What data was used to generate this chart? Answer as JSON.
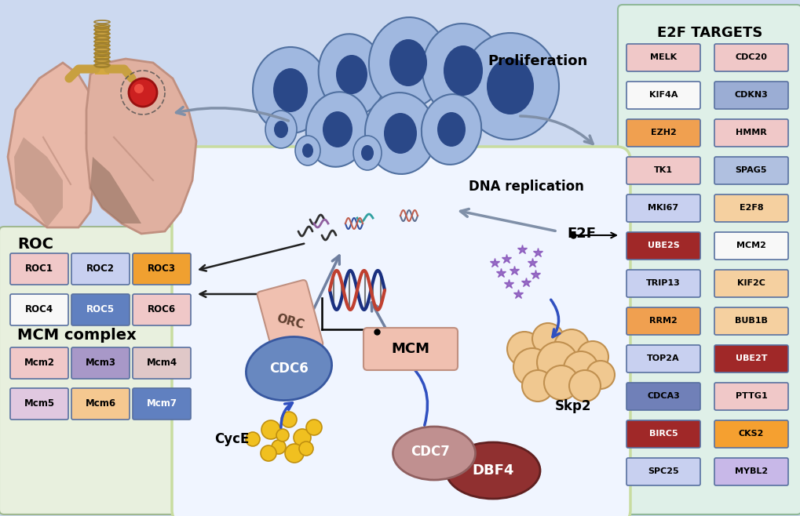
{
  "bg_color": "#ccd9f0",
  "left_panel_bg": "#e8f0de",
  "right_panel_bg": "#dff0e8",
  "cell_bg": "#f0f5ff",
  "cell_edge": "#c8dca0",
  "title": "E2F TARGETS",
  "roc_title": "ROC",
  "mcm_title": "MCM complex",
  "proliferation_text": "Proliferation",
  "dna_replication_text": "DNA replication",
  "e2f_label": "E2F",
  "skp2_label": "Skp2",
  "cyce_label": "CycE",
  "e2f_targets": [
    [
      "MELK",
      "#f0c8c8",
      "CDC20",
      "#f0c8c8"
    ],
    [
      "KIF4A",
      "#f8f8f8",
      "CDKN3",
      "#9badd4"
    ],
    [
      "EZH2",
      "#f0a050",
      "HMMR",
      "#f0c8c8"
    ],
    [
      "TK1",
      "#f0c8c8",
      "SPAG5",
      "#b0c0e0"
    ],
    [
      "MKI67",
      "#c8d0f0",
      "E2F8",
      "#f5d0a0"
    ],
    [
      "UBE2S",
      "#a02828",
      "MCM2",
      "#f8f8f8"
    ],
    [
      "TRIP13",
      "#c8d0f0",
      "KIF2C",
      "#f5d0a0"
    ],
    [
      "RRM2",
      "#f0a050",
      "BUB1B",
      "#f5d0a0"
    ],
    [
      "TOP2A",
      "#c8d0f0",
      "UBE2T",
      "#a02828"
    ],
    [
      "CDCA3",
      "#7080b8",
      "PTTG1",
      "#f0c8c8"
    ],
    [
      "BIRC5",
      "#a02828",
      "CKS2",
      "#f5a030"
    ],
    [
      "SPC25",
      "#c8d0f0",
      "MYBL2",
      "#c8b8e8"
    ]
  ],
  "roc_items": [
    [
      "ROC1",
      "#f0c8c8",
      "ROC2",
      "#c8d0f0",
      "ROC3",
      "#f0a030"
    ],
    [
      "ROC4",
      "#f8f8f8",
      "ROC5",
      "#6080c0",
      "ROC6",
      "#f0c8c8"
    ]
  ],
  "mcm_items": [
    [
      "Mcm2",
      "#f0c8c8",
      "Mcm3",
      "#a898c8",
      "Mcm4",
      "#e0c8c8"
    ],
    [
      "Mcm5",
      "#e0c8e0",
      "Mcm6",
      "#f5c890",
      "Mcm7",
      "#6080c0"
    ]
  ],
  "lung_left_color": "#e8b8a8",
  "lung_right_color": "#c0988880",
  "lung_dark_color": "#806050",
  "tumor_color": "#cc2020",
  "cell_body_color": "#a0b8e0",
  "cell_edge_color": "#5070a0",
  "nucleus_color": "#2a4888",
  "skp2_cell_color": "#f0c890",
  "skp2_edge_color": "#c09050",
  "cyce_color": "#f0c020",
  "cyce_edge": "#c09010",
  "star_color": "#8855bb",
  "cdc6_color": "#6888c0",
  "cdc6_edge": "#3858a0",
  "cdc7_color": "#c09090",
  "cdc7_edge": "#906060",
  "dbf4_color": "#903030",
  "dbf4_edge": "#602020",
  "orc_color": "#f0c0b0",
  "orc_edge": "#c09080",
  "mcm_box_color": "#f0c0b0",
  "mcm_box_edge": "#c09080"
}
